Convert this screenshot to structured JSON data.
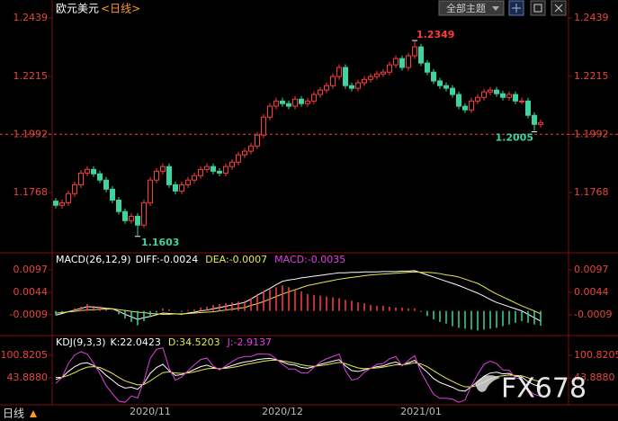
{
  "header": {
    "title": "欧元美元",
    "period": "<日线>",
    "theme": "全部主题"
  },
  "footer": {
    "period": "日线",
    "watermark": "FX678"
  },
  "chart_data": [
    {
      "type": "candlestick",
      "up_color": "#ff3c3c",
      "down_color": "#3fd3a0",
      "ylim": [
        1.154,
        1.2491
      ],
      "yticks": [
        1.2439,
        1.2215,
        1.1992,
        1.1768
      ],
      "price_line": 1.1992,
      "annotations": [
        1.2349,
        1.1603,
        1.2005
      ],
      "categories": [
        null,
        null,
        null,
        null,
        null,
        null,
        null,
        null,
        null,
        null,
        null,
        null,
        null,
        null,
        null,
        "2020/11",
        null,
        null,
        null,
        null,
        null,
        null,
        null,
        null,
        null,
        null,
        null,
        null,
        null,
        null,
        null,
        null,
        null,
        null,
        null,
        null,
        "2020/12",
        null,
        null,
        null,
        null,
        null,
        null,
        null,
        null,
        null,
        null,
        null,
        null,
        null,
        null,
        null,
        null,
        null,
        null,
        null,
        null,
        null,
        "2021/01",
        null,
        null,
        null,
        null,
        null,
        null,
        null,
        null,
        null,
        null,
        null,
        null,
        null,
        null,
        null,
        null,
        null,
        null,
        null
      ],
      "open": [
        1.1735,
        1.1719,
        1.1729,
        1.1764,
        1.1798,
        1.1843,
        1.1857,
        1.184,
        1.1816,
        1.1781,
        1.1739,
        1.1695,
        1.166,
        1.1677,
        1.1643,
        1.1729,
        1.1816,
        1.185,
        1.1868,
        1.1798,
        1.1774,
        1.1798,
        1.1816,
        1.1833,
        1.1857,
        1.1868,
        1.185,
        1.1843,
        1.1868,
        1.1885,
        1.1913,
        1.1927,
        1.1947,
        1.1989,
        1.2058,
        1.21,
        1.212,
        1.211,
        1.21,
        1.2127,
        1.211,
        1.212,
        1.2145,
        1.2162,
        1.2179,
        1.2214,
        1.2249,
        1.2179,
        1.2169,
        1.219,
        1.2203,
        1.2214,
        1.2224,
        1.2231,
        1.2259,
        1.2283,
        1.2249,
        1.2294,
        1.2328,
        1.2266,
        1.2231,
        1.2197,
        1.2179,
        1.2169,
        1.2145,
        1.21,
        1.2086,
        1.212,
        1.2134,
        1.2155,
        1.2162,
        1.2148,
        1.2134,
        1.2145,
        1.212,
        1.212,
        1.2065,
        1.203
      ],
      "high": [
        1.1747,
        1.1741,
        1.1776,
        1.181,
        1.1855,
        1.1869,
        1.1869,
        1.1852,
        1.1828,
        1.1793,
        1.1751,
        1.1707,
        1.1689,
        1.1689,
        1.1741,
        1.1828,
        1.1862,
        1.188,
        1.188,
        1.181,
        1.181,
        1.1828,
        1.1845,
        1.1869,
        1.188,
        1.188,
        1.1862,
        1.188,
        1.1897,
        1.1925,
        1.1939,
        1.1959,
        1.2001,
        1.207,
        1.2112,
        1.2132,
        1.2132,
        1.2122,
        1.2139,
        1.2139,
        1.2132,
        1.2157,
        1.2174,
        1.2191,
        1.2226,
        1.2261,
        1.2261,
        1.2191,
        1.2202,
        1.2215,
        1.2226,
        1.2236,
        1.2243,
        1.2271,
        1.2295,
        1.2295,
        1.2306,
        1.2349,
        1.234,
        1.2278,
        1.2243,
        1.2209,
        1.2191,
        1.2181,
        1.2157,
        1.2112,
        1.2132,
        1.2146,
        1.2167,
        1.2174,
        1.2174,
        1.216,
        1.2157,
        1.2157,
        1.2132,
        1.2132,
        1.2077,
        1.2049
      ],
      "low": [
        1.1707,
        1.1707,
        1.1717,
        1.1752,
        1.1786,
        1.1831,
        1.1828,
        1.1804,
        1.1769,
        1.1727,
        1.1683,
        1.1648,
        1.1648,
        1.1603,
        1.1631,
        1.1717,
        1.1804,
        1.1838,
        1.1786,
        1.1762,
        1.1762,
        1.1786,
        1.1804,
        1.1821,
        1.1845,
        1.1838,
        1.1831,
        1.1831,
        1.1856,
        1.1873,
        1.1901,
        1.1915,
        1.1935,
        1.1977,
        1.2046,
        1.2088,
        1.2098,
        1.2088,
        1.2088,
        1.2098,
        1.2098,
        1.2108,
        1.2133,
        1.215,
        1.2167,
        1.2202,
        1.2167,
        1.2157,
        1.2157,
        1.2178,
        1.2191,
        1.2202,
        1.2212,
        1.2219,
        1.2247,
        1.2237,
        1.2237,
        1.2282,
        1.2254,
        1.2219,
        1.2185,
        1.2167,
        1.2157,
        1.2133,
        1.2088,
        1.2074,
        1.2074,
        1.2108,
        1.2122,
        1.2143,
        1.2136,
        1.2122,
        1.2122,
        1.2108,
        1.2108,
        1.2053,
        1.2005,
        1.2018
      ],
      "close": [
        1.1719,
        1.1729,
        1.1764,
        1.1798,
        1.1843,
        1.1857,
        1.184,
        1.1816,
        1.1781,
        1.1739,
        1.1695,
        1.166,
        1.1677,
        1.1643,
        1.1729,
        1.1816,
        1.185,
        1.1868,
        1.1798,
        1.1774,
        1.1798,
        1.1816,
        1.1833,
        1.1857,
        1.1868,
        1.185,
        1.1843,
        1.1868,
        1.1885,
        1.1913,
        1.1927,
        1.1947,
        1.1989,
        1.2058,
        1.21,
        1.212,
        1.211,
        1.21,
        1.2127,
        1.211,
        1.212,
        1.2145,
        1.2162,
        1.2179,
        1.2214,
        1.2249,
        1.2179,
        1.2169,
        1.219,
        1.2203,
        1.2214,
        1.2224,
        1.2231,
        1.2259,
        1.2283,
        1.2249,
        1.2294,
        1.2328,
        1.2266,
        1.2231,
        1.2197,
        1.2179,
        1.2169,
        1.2145,
        1.21,
        1.2086,
        1.212,
        1.2134,
        1.2155,
        1.2162,
        1.2148,
        1.2134,
        1.2145,
        1.212,
        1.212,
        1.2065,
        1.203,
        1.2037
      ]
    },
    {
      "type": "line",
      "title": "MACD(26,12,9)",
      "ylim": [
        -0.0056,
        0.0133
      ],
      "yticks": [
        0.0097,
        0.0044,
        -0.0009
      ],
      "series": [
        {
          "name": "DIFF:-0.0024",
          "color": "#ffffff",
          "values": [
            -0.001,
            -0.0006,
            -0.0002,
            0.0002,
            0.0006,
            0.001,
            0.0009,
            0.0008,
            0.0006,
            0.0005,
            -0.0001,
            -0.0008,
            -0.0014,
            -0.002,
            -0.0016,
            -0.0013,
            -0.0009,
            -0.0005,
            -0.0006,
            -0.0007,
            -0.0008,
            -0.0005,
            -0.0003,
            0.0,
            0.0002,
            0.0005,
            0.0008,
            0.0011,
            0.0014,
            0.0017,
            0.002,
            0.0028,
            0.0037,
            0.0045,
            0.0053,
            0.0062,
            0.007,
            0.0073,
            0.0075,
            0.0078,
            0.008,
            0.0082,
            0.0084,
            0.0086,
            0.0088,
            0.009,
            0.009,
            0.0091,
            0.0091,
            0.0092,
            0.0092,
            0.0092,
            0.0093,
            0.0093,
            0.0093,
            0.0094,
            0.0094,
            0.0095,
            0.009,
            0.0085,
            0.008,
            0.0075,
            0.007,
            0.0065,
            0.006,
            0.0054,
            0.0048,
            0.0042,
            0.0035,
            0.0027,
            0.002,
            0.0015,
            0.001,
            0.0005,
            0.0,
            -0.0008,
            -0.0016,
            -0.0024
          ]
        },
        {
          "name": "DEA:-0.0007",
          "color": "#e8e84a",
          "values": [
            -0.0005,
            -0.0004,
            -0.0002,
            -0.0001,
            0.0001,
            0.0002,
            0.0003,
            0.0004,
            0.0004,
            0.0005,
            0.0003,
            0.0001,
            -0.0001,
            -0.0003,
            -0.0004,
            -0.0006,
            -0.0007,
            -0.0008,
            -0.0008,
            -0.0007,
            -0.0007,
            -0.0006,
            -0.0005,
            -0.0004,
            -0.0003,
            -0.0002,
            0.0,
            0.0002,
            0.0004,
            0.0006,
            0.0008,
            0.0013,
            0.0017,
            0.0022,
            0.0028,
            0.0034,
            0.004,
            0.0045,
            0.005,
            0.0055,
            0.006,
            0.0063,
            0.0066,
            0.0069,
            0.0072,
            0.0075,
            0.0077,
            0.0079,
            0.0081,
            0.0083,
            0.0085,
            0.0086,
            0.0087,
            0.0088,
            0.0089,
            0.009,
            0.0091,
            0.0092,
            0.0091,
            0.0091,
            0.009,
            0.0088,
            0.0085,
            0.0083,
            0.008,
            0.0075,
            0.007,
            0.0065,
            0.0057,
            0.0048,
            0.004,
            0.0033,
            0.0026,
            0.0019,
            0.0012,
            0.0006,
            0.0,
            -0.0007
          ]
        },
        {
          "name": "MACD:-0.0035",
          "type": "bar",
          "color": "#e040e0",
          "up_color": "#ff4040",
          "down_color": "#3fd3a0",
          "values": [
            -0.001,
            -0.0004,
            0.0,
            0.0006,
            0.001,
            0.0016,
            0.0012,
            0.0008,
            0.0004,
            0.0,
            -0.0008,
            -0.0018,
            -0.0026,
            -0.0034,
            -0.0024,
            -0.0014,
            -0.0004,
            0.0006,
            0.0004,
            0.0,
            -0.0002,
            0.0002,
            0.0004,
            0.0008,
            0.001,
            0.0014,
            0.0016,
            0.0018,
            0.002,
            0.0022,
            0.0024,
            0.003,
            0.004,
            0.0046,
            0.005,
            0.0056,
            0.006,
            0.0056,
            0.005,
            0.0046,
            0.004,
            0.0038,
            0.0036,
            0.0034,
            0.0032,
            0.003,
            0.0026,
            0.0024,
            0.002,
            0.0018,
            0.0014,
            0.0012,
            0.0012,
            0.001,
            0.0008,
            0.0008,
            0.0006,
            0.0006,
            -0.0002,
            -0.0012,
            -0.002,
            -0.0026,
            -0.003,
            -0.0036,
            -0.004,
            -0.0042,
            -0.0044,
            -0.0046,
            -0.0044,
            -0.0042,
            -0.004,
            -0.0036,
            -0.0032,
            -0.0028,
            -0.0024,
            -0.0028,
            -0.0032,
            -0.0035
          ]
        }
      ]
    },
    {
      "type": "line",
      "title": "KDJ(9,3,3)",
      "ylim": [
        -24.43,
        146.37
      ],
      "yticks": [
        100.8205,
        {
          "value": 43.888,
          "label": "43.8880"
        }
      ],
      "series": [
        {
          "name": "K:22.0423",
          "color": "#ffffff",
          "values": [
            40,
            45,
            60,
            72,
            80,
            82,
            75,
            65,
            50,
            38,
            25,
            18,
            20,
            15,
            30,
            55,
            70,
            78,
            62,
            50,
            52,
            58,
            65,
            72,
            76,
            70,
            66,
            70,
            75,
            80,
            84,
            86,
            90,
            92,
            93,
            90,
            84,
            78,
            76,
            70,
            68,
            72,
            78,
            82,
            86,
            90,
            74,
            62,
            60,
            64,
            68,
            72,
            74,
            80,
            84,
            76,
            82,
            88,
            72,
            58,
            42,
            32,
            26,
            20,
            12,
            10,
            22,
            34,
            48,
            56,
            58,
            54,
            55,
            48,
            46,
            34,
            26,
            22.0423
          ]
        },
        {
          "name": "D:34.5203",
          "color": "#e8e84a",
          "values": [
            45,
            45,
            50,
            57,
            65,
            71,
            72,
            70,
            63,
            55,
            45,
            36,
            31,
            26,
            27,
            36,
            47,
            57,
            59,
            56,
            55,
            56,
            59,
            63,
            67,
            68,
            67,
            68,
            70,
            73,
            77,
            80,
            83,
            86,
            88,
            89,
            87,
            84,
            81,
            77,
            74,
            73,
            75,
            77,
            80,
            83,
            80,
            74,
            69,
            67,
            68,
            69,
            71,
            74,
            77,
            77,
            79,
            82,
            79,
            72,
            62,
            52,
            43,
            35,
            27,
            21,
            21,
            25,
            33,
            41,
            47,
            49,
            51,
            50,
            49,
            44,
            38,
            34.5203
          ]
        },
        {
          "name": "J:-2.9137",
          "color": "#e040e0",
          "values": [
            30,
            45,
            80,
            102,
            110,
            104,
            81,
            55,
            24,
            4,
            -15,
            -18,
            -2,
            -7,
            36,
            93,
            116,
            120,
            68,
            38,
            46,
            62,
            77,
            90,
            94,
            74,
            64,
            74,
            85,
            94,
            98,
            98,
            104,
            104,
            103,
            92,
            78,
            66,
            66,
            56,
            56,
            70,
            84,
            92,
            98,
            104,
            62,
            38,
            42,
            58,
            68,
            78,
            80,
            92,
            98,
            74,
            88,
            100,
            58,
            30,
            2,
            -8,
            -8,
            -10,
            -18,
            -12,
            24,
            52,
            78,
            86,
            80,
            64,
            63,
            44,
            40,
            14,
            2,
            -2.9137
          ]
        }
      ]
    }
  ]
}
